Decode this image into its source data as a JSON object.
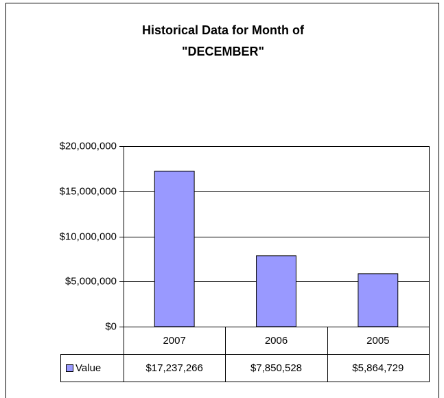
{
  "chart_data": {
    "type": "bar",
    "title": "Historical Data for Month of",
    "subtitle": "\"DECEMBER\"",
    "categories": [
      "2007",
      "2006",
      "2005"
    ],
    "series": [
      {
        "name": "Value",
        "color": "#9999ff",
        "values": [
          17237266,
          7850528,
          5864729
        ],
        "value_labels": [
          "$17,237,266",
          "$7,850,528",
          "$5,864,729"
        ]
      }
    ],
    "ylim": [
      0,
      20000000
    ],
    "yticks": [
      {
        "value": 0,
        "label": "$0"
      },
      {
        "value": 5000000,
        "label": "$5,000,000"
      },
      {
        "value": 10000000,
        "label": "$10,000,000"
      },
      {
        "value": 15000000,
        "label": "$15,000,000"
      },
      {
        "value": 20000000,
        "label": "$20,000,000"
      }
    ],
    "grid": true,
    "data_table": true
  }
}
